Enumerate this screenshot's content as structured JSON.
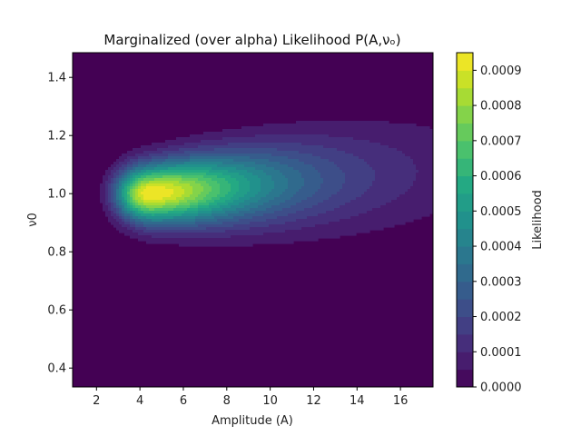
{
  "chart_data": {
    "type": "heatmap",
    "subtype": "filled-contour",
    "title": "Marginalized (over alpha) Likelihood P(A,νₒ)",
    "xlabel": "Amplitude (A)",
    "ylabel": "ν0",
    "colorbar_label": "Likelihood",
    "xlim": [
      0.9,
      17.5
    ],
    "ylim": [
      0.335,
      1.485
    ],
    "xticks": [
      2,
      4,
      6,
      8,
      10,
      12,
      14,
      16
    ],
    "xtick_labels": [
      "2",
      "4",
      "6",
      "8",
      "10",
      "12",
      "14",
      "16"
    ],
    "yticks": [
      0.4,
      0.6,
      0.8,
      1.0,
      1.2,
      1.4
    ],
    "ytick_labels": [
      "0.4",
      "0.6",
      "0.8",
      "1.0",
      "1.2",
      "1.4"
    ],
    "colorbar": {
      "min": 0,
      "max": 0.00095,
      "levels": 19,
      "ticks": [
        0,
        0.0001,
        0.0002,
        0.0003,
        0.0004,
        0.0005,
        0.0006,
        0.0007,
        0.0008,
        0.0009
      ],
      "tick_labels": [
        "0.0000",
        "0.0001",
        "0.0002",
        "0.0003",
        "0.0004",
        "0.0005",
        "0.0006",
        "0.0007",
        "0.0008",
        "0.0009"
      ],
      "colormap": "viridis"
    },
    "peak": {
      "amplitude": 4.5,
      "nu0": 1.0,
      "likelihood": 0.00095
    },
    "grid": false,
    "legend": "none"
  }
}
